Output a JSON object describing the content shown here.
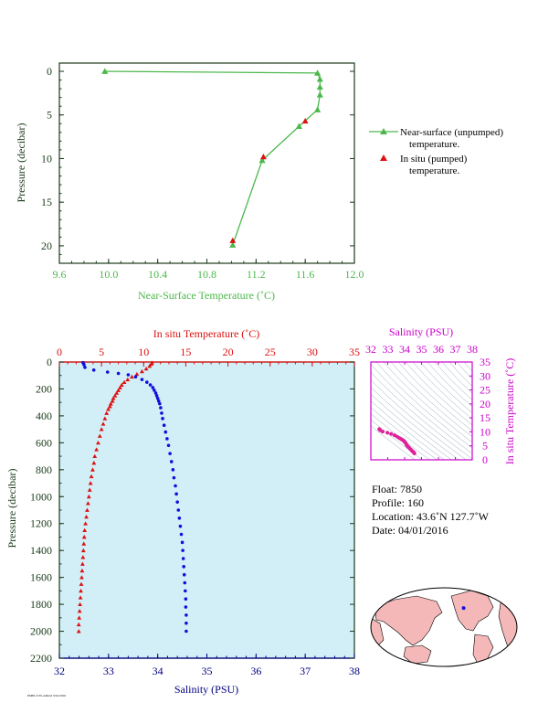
{
  "colors": {
    "green": "#4cb84c",
    "red": "#dd1111",
    "blue": "#1010dd",
    "magenta": "#cc00cc",
    "navy": "#000080",
    "ocean": "#d2eef7",
    "land": "#f5b8b8",
    "tsgrid": "#8fa9b8",
    "axisdark": "#1a3a1a"
  },
  "chart_data": [
    {
      "id": "near-surface",
      "type": "line",
      "xlabel": "Near-Surface Temperature (˚C)",
      "ylabel": "Pressure (decibar)",
      "xlim": [
        9.6,
        12.0
      ],
      "ylim": [
        0,
        22
      ],
      "xticks": [
        "9.6",
        "10.0",
        "10.4",
        "10.8",
        "11.2",
        "11.6",
        "12.0"
      ],
      "yticks": [
        "0",
        "5",
        "10",
        "15",
        "20"
      ],
      "series": [
        {
          "name": "Near-surface (unpumped) temperature.",
          "marker": "triangle",
          "points": [
            [
              9.97,
              0.0
            ],
            [
              11.7,
              0.2
            ],
            [
              11.72,
              0.9
            ],
            [
              11.72,
              1.8
            ],
            [
              11.72,
              2.7
            ],
            [
              11.7,
              4.4
            ],
            [
              11.55,
              6.3
            ],
            [
              11.25,
              10.2
            ],
            [
              11.01,
              19.9
            ]
          ]
        },
        {
          "name": "In situ (pumped) temperature.",
          "marker": "triangle",
          "points": [
            [
              11.6,
              5.7
            ],
            [
              11.26,
              9.8
            ],
            [
              11.01,
              19.4
            ]
          ]
        }
      ]
    },
    {
      "id": "profile",
      "type": "scatter",
      "xlabel_top": "In situ Temperature (˚C)",
      "xlabel_bottom": "Salinity (PSU)",
      "ylabel": "Pressure (decibar)",
      "temp_lim": [
        0,
        35
      ],
      "sal_lim": [
        32,
        38
      ],
      "ylim": [
        0,
        2200
      ],
      "temp_ticks": [
        "0",
        "5",
        "10",
        "15",
        "20",
        "25",
        "30",
        "35"
      ],
      "sal_ticks": [
        "32",
        "33",
        "34",
        "35",
        "36",
        "37",
        "38"
      ],
      "yticks": [
        "0",
        "200",
        "400",
        "600",
        "800",
        "1000",
        "1200",
        "1400",
        "1600",
        "1800",
        "2000",
        "2200"
      ],
      "temperature": {
        "points": [
          [
            11.0,
            5
          ],
          [
            10.9,
            15
          ],
          [
            10.7,
            30
          ],
          [
            10.3,
            50
          ],
          [
            9.8,
            70
          ],
          [
            9.2,
            90
          ],
          [
            8.6,
            110
          ],
          [
            8.1,
            130
          ],
          [
            7.7,
            150
          ],
          [
            7.4,
            170
          ],
          [
            7.2,
            190
          ],
          [
            7.0,
            210
          ],
          [
            6.8,
            230
          ],
          [
            6.6,
            250
          ],
          [
            6.4,
            270
          ],
          [
            6.3,
            290
          ],
          [
            6.1,
            310
          ],
          [
            6.0,
            330
          ],
          [
            5.8,
            350
          ],
          [
            5.6,
            380
          ],
          [
            5.4,
            420
          ],
          [
            5.2,
            460
          ],
          [
            5.0,
            500
          ],
          [
            4.8,
            550
          ],
          [
            4.6,
            600
          ],
          [
            4.4,
            650
          ],
          [
            4.2,
            700
          ],
          [
            4.1,
            750
          ],
          [
            3.95,
            800
          ],
          [
            3.8,
            850
          ],
          [
            3.7,
            900
          ],
          [
            3.6,
            950
          ],
          [
            3.5,
            1000
          ],
          [
            3.4,
            1050
          ],
          [
            3.3,
            1100
          ],
          [
            3.2,
            1150
          ],
          [
            3.1,
            1200
          ],
          [
            3.0,
            1250
          ],
          [
            2.95,
            1300
          ],
          [
            2.9,
            1350
          ],
          [
            2.85,
            1400
          ],
          [
            2.8,
            1450
          ],
          [
            2.75,
            1500
          ],
          [
            2.7,
            1550
          ],
          [
            2.65,
            1600
          ],
          [
            2.6,
            1650
          ],
          [
            2.55,
            1700
          ],
          [
            2.5,
            1750
          ],
          [
            2.45,
            1800
          ],
          [
            2.4,
            1850
          ],
          [
            2.35,
            1900
          ],
          [
            2.3,
            1950
          ],
          [
            2.3,
            2000
          ]
        ]
      },
      "salinity": {
        "points": [
          [
            32.48,
            5
          ],
          [
            32.5,
            20
          ],
          [
            32.52,
            40
          ],
          [
            32.7,
            60
          ],
          [
            32.98,
            75
          ],
          [
            33.2,
            85
          ],
          [
            33.4,
            95
          ],
          [
            33.55,
            110
          ],
          [
            33.68,
            130
          ],
          [
            33.78,
            150
          ],
          [
            33.85,
            170
          ],
          [
            33.9,
            190
          ],
          [
            33.93,
            210
          ],
          [
            33.96,
            230
          ],
          [
            33.98,
            250
          ],
          [
            34.0,
            270
          ],
          [
            34.02,
            290
          ],
          [
            34.04,
            310
          ],
          [
            34.06,
            340
          ],
          [
            34.08,
            380
          ],
          [
            34.1,
            420
          ],
          [
            34.13,
            470
          ],
          [
            34.16,
            520
          ],
          [
            34.19,
            570
          ],
          [
            34.22,
            620
          ],
          [
            34.25,
            680
          ],
          [
            34.28,
            740
          ],
          [
            34.31,
            800
          ],
          [
            34.33,
            860
          ],
          [
            34.36,
            920
          ],
          [
            34.38,
            980
          ],
          [
            34.4,
            1040
          ],
          [
            34.42,
            1100
          ],
          [
            34.44,
            1160
          ],
          [
            34.46,
            1220
          ],
          [
            34.48,
            1280
          ],
          [
            34.5,
            1340
          ],
          [
            34.51,
            1400
          ],
          [
            34.52,
            1460
          ],
          [
            34.53,
            1520
          ],
          [
            34.54,
            1580
          ],
          [
            34.55,
            1640
          ],
          [
            34.56,
            1700
          ],
          [
            34.57,
            1760
          ],
          [
            34.57,
            1820
          ],
          [
            34.58,
            1880
          ],
          [
            34.58,
            1940
          ],
          [
            34.58,
            2000
          ]
        ]
      }
    },
    {
      "id": "ts-diagram",
      "type": "scatter",
      "xlabel": "Salinity (PSU)",
      "ylabel": "In situ Temperature (˚C)",
      "xlim": [
        32,
        38
      ],
      "ylim": [
        0,
        35
      ],
      "xticks": [
        "32",
        "33",
        "34",
        "35",
        "36",
        "37",
        "38"
      ],
      "yticks": [
        "0",
        "5",
        "10",
        "15",
        "20",
        "25",
        "30",
        "35"
      ],
      "points": [
        [
          32.5,
          11.0
        ],
        [
          32.55,
          10.6
        ],
        [
          32.7,
          10.1
        ],
        [
          32.98,
          9.7
        ],
        [
          33.2,
          9.3
        ],
        [
          33.4,
          8.8
        ],
        [
          33.55,
          8.3
        ],
        [
          33.68,
          7.8
        ],
        [
          33.78,
          7.5
        ],
        [
          33.85,
          7.2
        ],
        [
          33.93,
          6.9
        ],
        [
          33.98,
          6.6
        ],
        [
          34.02,
          6.3
        ],
        [
          34.06,
          6.0
        ],
        [
          34.1,
          5.6
        ],
        [
          34.13,
          5.2
        ],
        [
          34.19,
          4.8
        ],
        [
          34.25,
          4.4
        ],
        [
          34.31,
          4.0
        ],
        [
          34.38,
          3.6
        ],
        [
          34.44,
          3.2
        ],
        [
          34.5,
          2.9
        ],
        [
          34.54,
          2.6
        ],
        [
          34.58,
          2.3
        ]
      ]
    }
  ],
  "legend": {
    "item1_line1": "Near-surface (unpumped)",
    "item1_line2": "temperature.",
    "item2_line1": "In situ (pumped)",
    "item2_line2": "temperature."
  },
  "info": {
    "float": "Float:  7850",
    "profile": "Profile:  160",
    "location": "Location:  43.6˚N  127.7˚W",
    "date": "Date:  04/01/2016"
  },
  "footer": "PMEL/UW-ARGO 3/22/2016",
  "map": {
    "float_position": {
      "lat": 43.6,
      "lon": -127.7
    }
  }
}
